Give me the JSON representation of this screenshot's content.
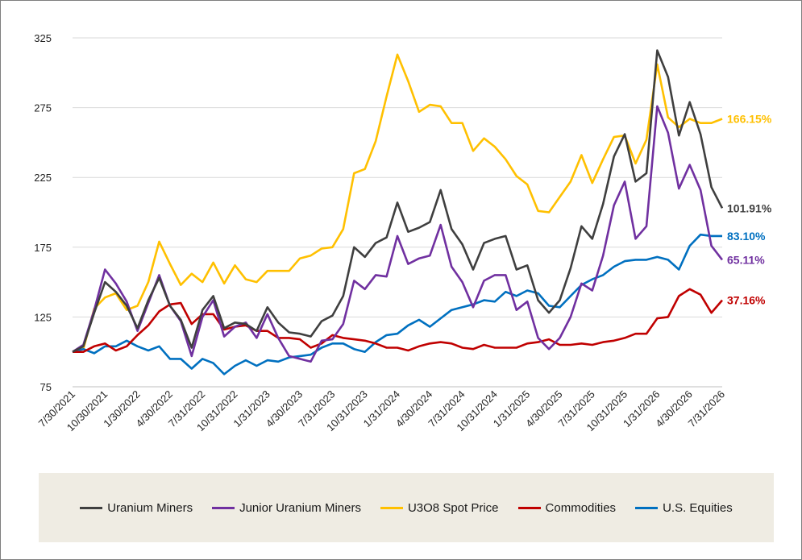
{
  "chart_data": {
    "type": "line",
    "title": "",
    "xlabel": "",
    "ylabel": "",
    "ylim": [
      75,
      325
    ],
    "yticks": [
      75,
      125,
      175,
      225,
      275,
      325
    ],
    "grid": "horizontal",
    "legend": "bottom",
    "x_tick_labels": [
      "7/30/2021",
      "10/30/2021",
      "1/30/2022",
      "4/30/2022",
      "7/31/2022",
      "10/31/2022",
      "1/31/2023",
      "4/30/2023",
      "7/31/2023",
      "10/31/2023",
      "1/31/2024",
      "4/30/2024",
      "7/31/2024",
      "10/31/2024",
      "1/31/2025",
      "4/30/2025",
      "7/31/2025",
      "10/31/2025",
      "1/31/2026",
      "4/30/2026",
      "7/31/2026"
    ],
    "series": [
      {
        "name": "Uranium Miners",
        "color": "#3f3f3f",
        "end_label": "101.91%",
        "values": [
          100,
          104,
          128,
          150,
          143,
          133,
          117,
          137,
          153,
          133,
          123,
          103,
          130,
          140,
          117,
          121,
          120,
          115,
          132,
          121,
          114,
          113,
          111,
          122,
          126,
          140,
          175,
          168,
          178,
          182,
          207,
          186,
          189,
          193,
          216,
          188,
          177,
          159,
          178,
          181,
          183,
          159,
          162,
          137,
          128,
          137,
          160,
          190,
          181,
          206,
          240,
          256,
          222,
          228,
          316,
          297,
          255,
          279,
          256,
          218,
          203
        ]
      },
      {
        "name": "Junior Uranium Miners",
        "color": "#7030a0",
        "end_label": "65.11%",
        "values": [
          100,
          105,
          130,
          159,
          149,
          136,
          115,
          135,
          155,
          133,
          122,
          97,
          125,
          137,
          111,
          118,
          121,
          110,
          127,
          110,
          97,
          95,
          93,
          108,
          109,
          120,
          151,
          145,
          155,
          154,
          183,
          163,
          167,
          169,
          191,
          161,
          150,
          132,
          151,
          155,
          155,
          130,
          136,
          110,
          102,
          110,
          125,
          149,
          144,
          169,
          205,
          222,
          181,
          190,
          276,
          257,
          217,
          234,
          216,
          176,
          166
        ]
      },
      {
        "name": "U3O8 Spot Price",
        "color": "#ffc000",
        "end_label": "166.15%",
        "values": [
          100,
          102,
          131,
          139,
          142,
          130,
          133,
          150,
          179,
          163,
          148,
          156,
          150,
          164,
          149,
          162,
          152,
          150,
          158,
          158,
          158,
          167,
          169,
          174,
          175,
          188,
          228,
          231,
          251,
          283,
          313,
          294,
          272,
          277,
          276,
          264,
          264,
          244,
          253,
          247,
          238,
          226,
          220,
          201,
          200,
          211,
          222,
          241,
          221,
          238,
          254,
          255,
          235,
          252,
          306,
          268,
          261,
          267,
          264,
          264,
          267
        ]
      },
      {
        "name": "Commodities",
        "color": "#c00000",
        "end_label": "37.16%",
        "values": [
          100,
          100,
          104,
          106,
          101,
          104,
          112,
          119,
          129,
          134,
          135,
          120,
          127,
          127,
          116,
          118,
          119,
          115,
          115,
          110,
          110,
          109,
          103,
          106,
          112,
          110,
          109,
          108,
          106,
          103,
          103,
          101,
          104,
          106,
          107,
          106,
          103,
          102,
          105,
          103,
          103,
          103,
          106,
          107,
          109,
          105,
          105,
          106,
          105,
          107,
          108,
          110,
          113,
          113,
          124,
          125,
          140,
          145,
          141,
          128,
          137
        ]
      },
      {
        "name": "U.S. Equities",
        "color": "#0070c0",
        "end_label": "83.10%",
        "values": [
          100,
          102,
          99,
          104,
          104,
          108,
          104,
          101,
          104,
          95,
          95,
          88,
          95,
          92,
          84,
          90,
          94,
          90,
          94,
          93,
          96,
          97,
          98,
          103,
          106,
          106,
          102,
          100,
          107,
          112,
          113,
          119,
          123,
          118,
          124,
          130,
          132,
          134,
          137,
          136,
          143,
          140,
          144,
          142,
          133,
          132,
          140,
          148,
          152,
          155,
          161,
          165,
          166,
          166,
          168,
          166,
          159,
          176,
          184,
          183,
          183
        ]
      }
    ]
  }
}
